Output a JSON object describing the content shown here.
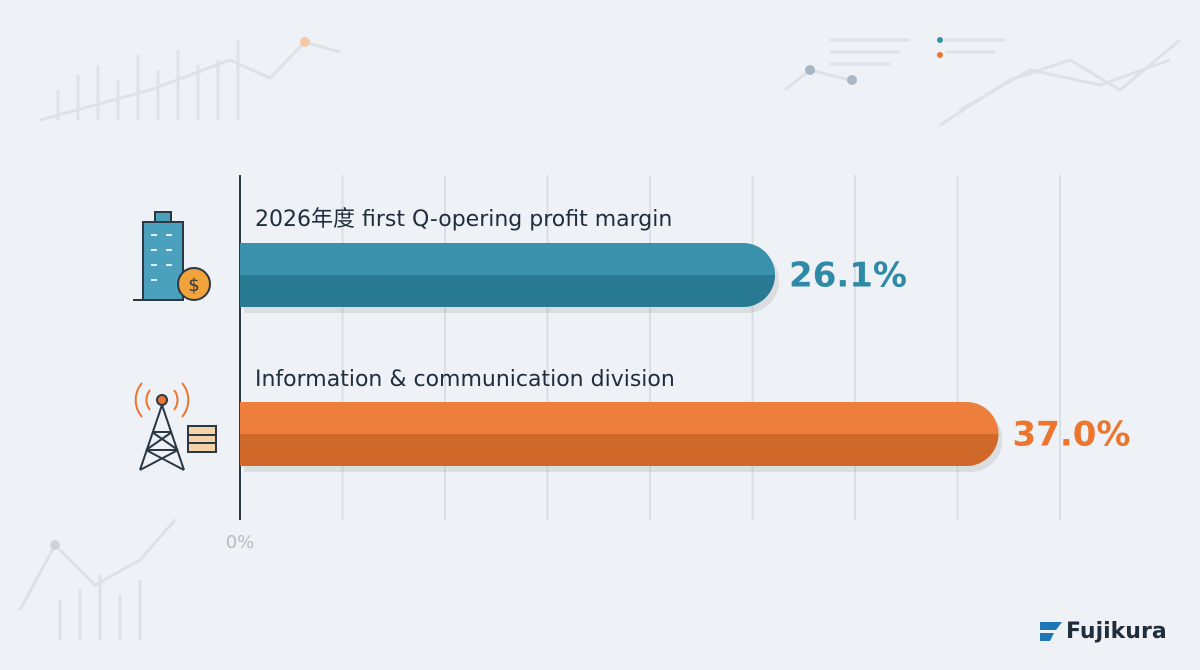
{
  "chart_data": {
    "type": "hbar",
    "categories": [
      "2026年度 first Q-opering profit margin",
      "Information & communication division"
    ],
    "values": [
      26.1,
      37.0
    ],
    "value_labels": [
      "26.1%",
      "37.0%"
    ],
    "colors": [
      "#2e8aa6",
      "#ec7630"
    ],
    "xlim": [
      0,
      40
    ],
    "xticks": [
      {
        "value": 0,
        "label": "0%"
      },
      {
        "value": 5,
        "label": null
      },
      {
        "value": 10,
        "label": null
      },
      {
        "value": 15,
        "label": null
      },
      {
        "value": 20,
        "label": null
      },
      {
        "value": 25,
        "label": null
      },
      {
        "value": 30,
        "label": null
      },
      {
        "value": 35,
        "label": null
      },
      {
        "value": 40,
        "label": null
      }
    ],
    "grid": true
  },
  "brand": "Fujikura"
}
